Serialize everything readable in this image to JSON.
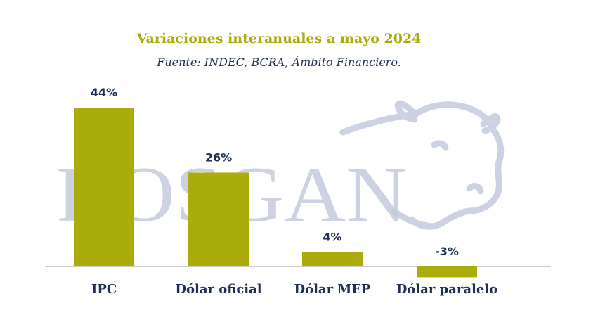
{
  "chart_data": {
    "type": "bar",
    "title": "Variaciones interanuales a mayo 2024",
    "subtitle": "Fuente: INDEC, BCRA, Ámbito Financiero.",
    "categories": [
      "IPC",
      "Dólar oficial",
      "Dólar MEP",
      "Dólar paralelo"
    ],
    "values": [
      44,
      26,
      4,
      -3
    ],
    "value_labels": [
      "44%",
      "26%",
      "4%",
      "-3%"
    ],
    "ylim": [
      -3,
      44
    ],
    "grid": false,
    "legend": "none",
    "colors": {
      "bar": "#a9ac09",
      "text": "#1d2f52",
      "title": "#a9ac09",
      "watermark": "#c5cbdd"
    }
  },
  "watermark": {
    "text": "ROSGAN",
    "icon": "cow-head-icon"
  }
}
